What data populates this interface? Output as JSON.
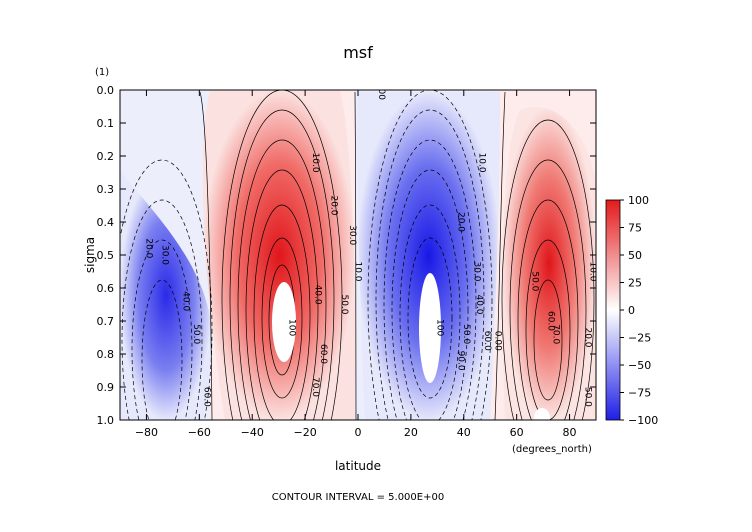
{
  "chart_data": {
    "type": "heatmap",
    "title": "msf",
    "xlabel": "latitude",
    "x_units": "(degrees_north)",
    "ylabel": "sigma",
    "y_units": "(1)",
    "footer": "CONTOUR INTERVAL = 5.000E+00",
    "xlim": [
      -90,
      90
    ],
    "ylim": [
      1.0,
      0.0
    ],
    "x_ticks": [
      -80,
      -60,
      -40,
      -20,
      0,
      20,
      40,
      60,
      80
    ],
    "x_tick_labels": [
      "−80",
      "−60",
      "−40",
      "−20",
      "0",
      "20",
      "40",
      "60",
      "80"
    ],
    "y_ticks": [
      0.0,
      0.1,
      0.2,
      0.3,
      0.4,
      0.5,
      0.6,
      0.7,
      0.8,
      0.9,
      1.0
    ],
    "y_tick_labels": [
      "0.0",
      "0.1",
      "0.2",
      "0.3",
      "0.4",
      "0.5",
      "0.6",
      "0.7",
      "0.8",
      "0.9",
      "1.0"
    ],
    "contour_interval": 5.0,
    "color_range": [
      -100,
      100
    ],
    "colorbar": {
      "ticks": [
        100,
        75,
        50,
        25,
        0,
        -25,
        -50,
        -75,
        -100
      ],
      "tick_labels": [
        "100",
        "75",
        "50",
        "25",
        "0",
        "−25",
        "−50",
        "−75",
        "−100"
      ],
      "colors": {
        "positive": "#e31a1c",
        "zero": "#ffffff",
        "negative": "#1f1fe6"
      }
    },
    "cells": [
      {
        "lat": -70,
        "sigma": 0.8,
        "peak": -65
      },
      {
        "lat": -28,
        "sigma": 0.7,
        "peak": 100
      },
      {
        "lat": 28,
        "sigma": 0.7,
        "peak": -100
      },
      {
        "lat": 68,
        "sigma": 0.85,
        "peak": 100
      }
    ],
    "contour_labels": [
      {
        "text": "0.00",
        "lat": 8,
        "sigma": 0.0
      },
      {
        "text": "10.0",
        "lat": -17,
        "sigma": 0.22
      },
      {
        "text": "20.0",
        "lat": -10,
        "sigma": 0.35
      },
      {
        "text": "30.0",
        "lat": -3,
        "sigma": 0.44
      },
      {
        "text": "10.0",
        "lat": -1,
        "sigma": 0.55
      },
      {
        "text": "20.0",
        "lat": -80,
        "sigma": 0.48
      },
      {
        "text": "30.0",
        "lat": -74,
        "sigma": 0.5
      },
      {
        "text": "40.0",
        "lat": -66,
        "sigma": 0.64
      },
      {
        "text": "50.0",
        "lat": -62,
        "sigma": 0.74
      },
      {
        "text": "60.0",
        "lat": -58,
        "sigma": 0.93
      },
      {
        "text": "40.0",
        "lat": -16,
        "sigma": 0.62
      },
      {
        "text": "50.0",
        "lat": -6,
        "sigma": 0.65
      },
      {
        "text": "60.0",
        "lat": -14,
        "sigma": 0.8
      },
      {
        "text": "70.0",
        "lat": -17,
        "sigma": 0.9
      },
      {
        "text": "100",
        "lat": -26,
        "sigma": 0.72
      },
      {
        "text": "100",
        "lat": 30,
        "sigma": 0.72
      },
      {
        "text": "10.0",
        "lat": 46,
        "sigma": 0.22
      },
      {
        "text": "20.0",
        "lat": 38,
        "sigma": 0.4
      },
      {
        "text": "30.0",
        "lat": 44,
        "sigma": 0.55
      },
      {
        "text": "40.0",
        "lat": 45,
        "sigma": 0.65
      },
      {
        "text": "50.0",
        "lat": 40,
        "sigma": 0.74
      },
      {
        "text": "60.0",
        "lat": 48,
        "sigma": 0.76
      },
      {
        "text": "90.0",
        "lat": 38,
        "sigma": 0.82
      },
      {
        "text": "0.00",
        "lat": 52,
        "sigma": 0.76
      },
      {
        "text": "50.0",
        "lat": 66,
        "sigma": 0.58
      },
      {
        "text": "60.0",
        "lat": 72,
        "sigma": 0.7
      },
      {
        "text": "70.0",
        "lat": 74,
        "sigma": 0.74
      },
      {
        "text": "10.0",
        "lat": 88,
        "sigma": 0.55
      },
      {
        "text": "20.0",
        "lat": 86,
        "sigma": 0.75
      },
      {
        "text": "50.0",
        "lat": 86,
        "sigma": 0.93
      }
    ]
  }
}
